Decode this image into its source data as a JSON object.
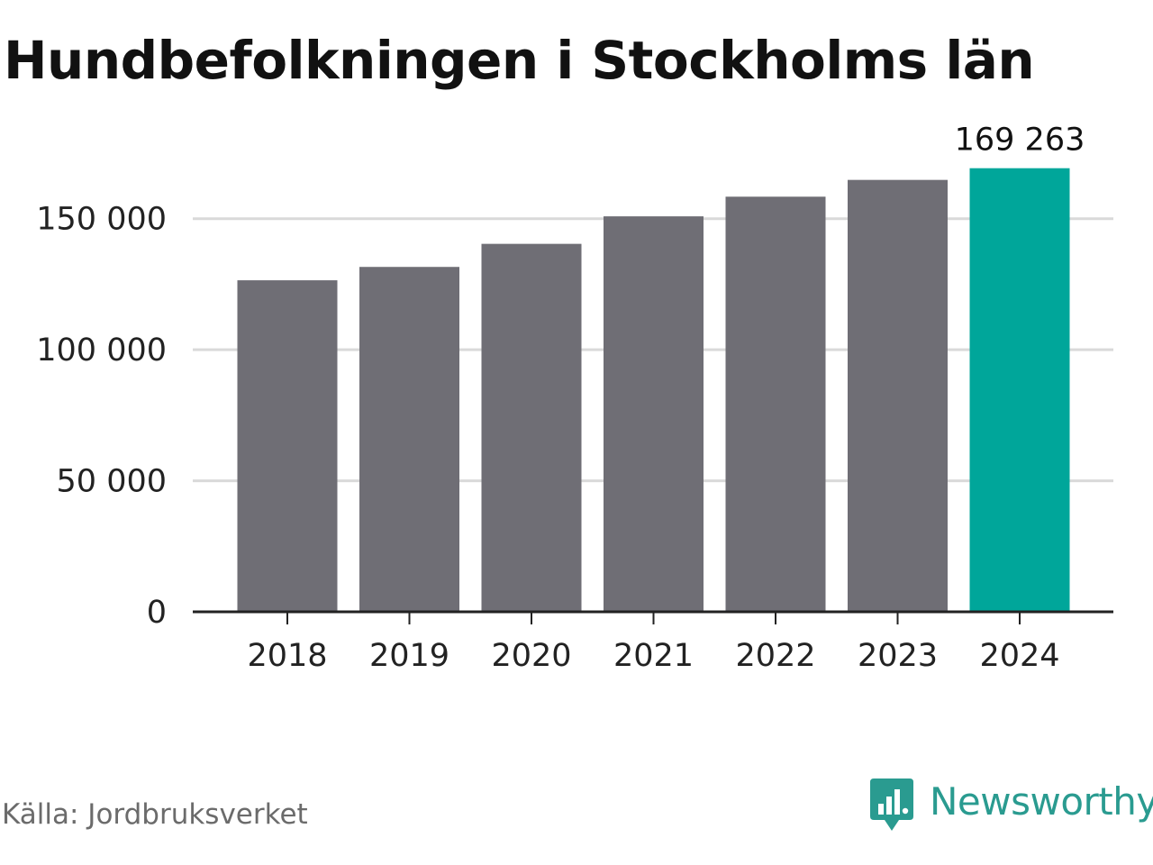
{
  "chart_data": {
    "type": "bar",
    "title": "Hundbefolkningen i Stockholms län",
    "xlabel": "",
    "ylabel": "",
    "categories": [
      "2018",
      "2019",
      "2020",
      "2021",
      "2022",
      "2023",
      "2024"
    ],
    "values": [
      126500,
      131600,
      140400,
      150900,
      158400,
      164800,
      169263
    ],
    "ylim": [
      0,
      175000
    ],
    "yticks": [
      0,
      50000,
      100000,
      150000
    ],
    "ytick_labels": [
      "0",
      "50 000",
      "100 000",
      "150 000"
    ],
    "grid": true,
    "highlight_index": 6,
    "data_labels": [
      {
        "category": "2024",
        "text": "169 263"
      }
    ],
    "colors": {
      "bar": "#6f6e75",
      "highlight": "#00a69a",
      "grid": "#d9d9d9",
      "axis": "#222222"
    }
  },
  "footer": {
    "source": "Källa: Jordbruksverket",
    "brand": "Newsworthy",
    "brand_icon": "newsworthy-logo-icon",
    "brand_color": "#2a9b90"
  }
}
